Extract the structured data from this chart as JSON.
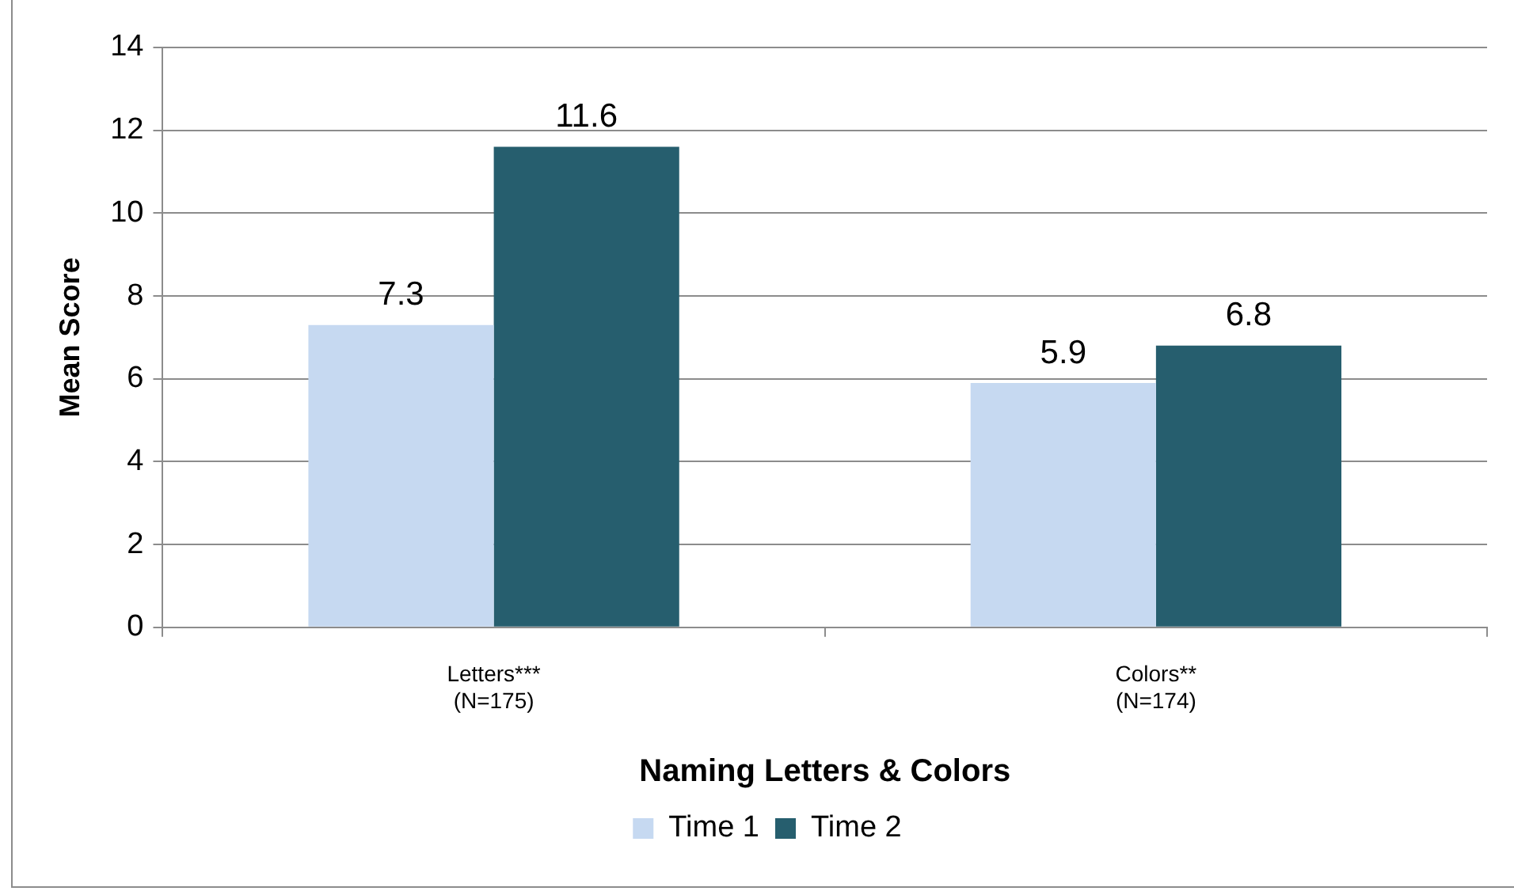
{
  "chart_data": {
    "type": "bar",
    "xlabel": "Naming Letters & Colors",
    "ylabel": "Mean Score",
    "categories": [
      "Letters***\n(N=175)",
      "Colors**\n(N=174)"
    ],
    "series": [
      {
        "name": "Time 1",
        "color": "#c6d9f1",
        "values": [
          7.3,
          5.9
        ]
      },
      {
        "name": "Time 2",
        "color": "#265e6e",
        "values": [
          11.6,
          6.8
        ]
      }
    ],
    "ylim": [
      0,
      14
    ],
    "yticks": [
      0,
      2,
      4,
      6,
      8,
      10,
      12,
      14
    ],
    "grid": "y",
    "legend": "bottom",
    "data_labels": true
  }
}
